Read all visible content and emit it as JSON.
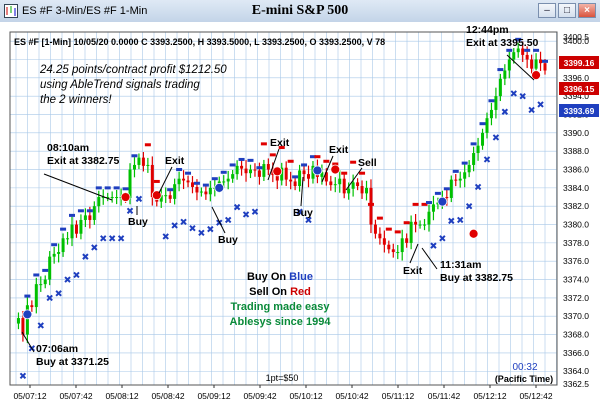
{
  "window": {
    "title": "ES #F 3-Min/ES #F 1-Min",
    "center_title": "E-mini S&P 500"
  },
  "chart_data": {
    "type": "candlestick",
    "info_line": "ES #F [1-Min]  10/05/20  0.0000  C 3393.2500, H 3393.5000, L 3393.2500, O 3393.2500, V 78",
    "ylim": [
      3362.5,
      3401
    ],
    "y_ticks": [
      3364.0,
      3366.0,
      3368.0,
      3370.0,
      3372.0,
      3374.0,
      3376.0,
      3378.0,
      3380.0,
      3382.0,
      3384.0,
      3386.0,
      3388.0,
      3390.0,
      3392.0,
      3394.0,
      3396.0,
      3398.0,
      3400.0
    ],
    "y_tick_labels": [
      "3362.5",
      "3364.0",
      "3366.0",
      "3368.0",
      "3370.0",
      "3372.0",
      "3374.0",
      "3376.0",
      "3378.0",
      "3380.0",
      "3382.0",
      "3384.0",
      "3386.0",
      "3388.0",
      "3390.0",
      "3392.0",
      "3394.0",
      "3396.0",
      "3398.0",
      "3400.0",
      "3400.5"
    ],
    "x_tick_labels": [
      "05/07:12",
      "05/07:42",
      "05/08:12",
      "05/08:42",
      "05/09:12",
      "05/09:42",
      "05/10:12",
      "05/10:42",
      "05/11:12",
      "05/11:42",
      "05/12:12",
      "05/12:42"
    ],
    "price_badges": [
      {
        "value": "3399.16",
        "color": "#cc0000"
      },
      {
        "value": "3396.15",
        "color": "#cc0000"
      },
      {
        "value": "3393.69",
        "color": "#1f3fbf"
      }
    ],
    "price_path": [
      3369.2,
      3369.8,
      3368.0,
      3371.2,
      3371.0,
      3373.5,
      3373.5,
      3374.0,
      3376.5,
      3376.8,
      3377.0,
      3378.5,
      3378.5,
      3380.0,
      3379.0,
      3380.5,
      3381.0,
      3380.5,
      3382.0,
      3383.0,
      3383.0,
      3383.0,
      3383.0,
      3383.0,
      3383.0,
      3382.9,
      3386.0,
      3386.5,
      3387.3,
      3386.4,
      3386.5,
      3383.0,
      3382.5,
      3383.2,
      3383.2,
      3382.8,
      3384.4,
      3385.0,
      3384.8,
      3384.6,
      3384.1,
      3383.5,
      3383.6,
      3383.3,
      3384.0,
      3384.0,
      3384.7,
      3384.7,
      3385.0,
      3385.5,
      3386.4,
      3386.1,
      3385.6,
      3386.0,
      3385.9,
      3385.2,
      3386.6,
      3386.0,
      3385.4,
      3384.8,
      3386.2,
      3384.9,
      3384.7,
      3384.2,
      3385.9,
      3385.5,
      3385.0,
      3386.4,
      3385.2,
      3385.7,
      3384.7,
      3384.3,
      3384.4,
      3385.0,
      3383.4,
      3383.9,
      3384.6,
      3384.2,
      3383.4,
      3384.0,
      3380.0,
      3379.0,
      3378.5,
      3377.8,
      3377.3,
      3377.0,
      3377.0,
      3378.5,
      3378.0,
      3380.3,
      3380.0,
      3380.0,
      3380.0,
      3381.4,
      3382.2,
      3382.4,
      3383.0,
      3382.9,
      3384.9,
      3384.8,
      3385.0,
      3385.7,
      3386.5,
      3387.8,
      3388.6,
      3390.0,
      3391.6,
      3392.5,
      3394.0,
      3395.9,
      3396.8,
      3398.0,
      3398.8,
      3399.2,
      3398.5,
      3398.0,
      3397.0,
      3398.0,
      3397.6,
      3396.8
    ],
    "signal_dots": [
      {
        "x": 3,
        "y": 3370.2,
        "color": "blue"
      },
      {
        "x": 25,
        "y": 3383.0,
        "color": "red"
      },
      {
        "x": 32,
        "y": 3383.2,
        "color": "red"
      },
      {
        "x": 46,
        "y": 3384.0,
        "color": "blue"
      },
      {
        "x": 59,
        "y": 3385.8,
        "color": "red"
      },
      {
        "x": 68,
        "y": 3385.9,
        "color": "blue"
      },
      {
        "x": 72,
        "y": 3386.0,
        "color": "red"
      },
      {
        "x": 96,
        "y": 3382.5,
        "color": "blue"
      },
      {
        "x": 103,
        "y": 3379.0,
        "color": "red"
      },
      {
        "x": 117,
        "y": 3396.3,
        "color": "red"
      }
    ],
    "annotations": [
      {
        "lines": [
          "24.25 points/contract profit $1212.50",
          "using AbleTrend signals trading",
          "the 2 winners!"
        ],
        "style": "italic"
      },
      {
        "lines": [
          "08:10am",
          "Exit at 3382.75"
        ],
        "style": "bold"
      },
      {
        "lines": [
          "07:06am",
          "Buy at 3371.25"
        ],
        "style": "bold"
      },
      {
        "lines": [
          "12:44pm",
          "Exit at 3395.50"
        ],
        "style": "bold"
      },
      {
        "lines": [
          "11:31am",
          "Buy at 3382.75"
        ],
        "style": "bold"
      }
    ],
    "labels": [
      "Buy",
      "Exit",
      "Buy",
      "Exit",
      "Buy",
      "Exit",
      "Sell",
      "Exit"
    ],
    "legend": [
      {
        "prefix": "Buy On ",
        "word": "Blue",
        "word_color": "#1f3fbf"
      },
      {
        "prefix": "Sell On ",
        "word": "Red",
        "word_color": "#cc0000"
      }
    ],
    "tagline": [
      "Trading made easy",
      "Ablesys since 1994"
    ],
    "footer_point_value": "1pt=$50",
    "clock": "00:32",
    "timezone": "(Pacific Time)",
    "colors": {
      "up": "#00c000",
      "down": "#e00000",
      "buy": "#1f3fbf",
      "sell": "#e00000",
      "grid": "#a8c8e8",
      "tagline": "#0a8a3a"
    }
  }
}
